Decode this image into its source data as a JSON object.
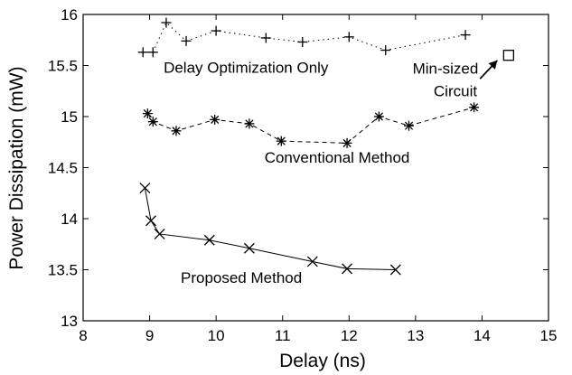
{
  "chart_data": {
    "type": "line",
    "title": "",
    "xlabel": "Delay (ns)",
    "ylabel": "Power Dissipation (mW)",
    "xlim": [
      8,
      15
    ],
    "ylim": [
      13,
      16
    ],
    "xticks": [
      "8",
      "9",
      "10",
      "11",
      "12",
      "13",
      "14",
      "15"
    ],
    "yticks": [
      "13",
      "13.5",
      "14",
      "14.5",
      "15",
      "15.5",
      "16"
    ],
    "grid": false,
    "series": [
      {
        "name": "Delay Optimization Only",
        "marker": "plus",
        "dash": "dotted",
        "x": [
          8.9,
          9.05,
          9.25,
          9.55,
          10.0,
          10.75,
          11.3,
          12.0,
          12.55,
          13.75
        ],
        "y": [
          15.63,
          15.63,
          15.92,
          15.74,
          15.84,
          15.77,
          15.73,
          15.78,
          15.65,
          15.8
        ]
      },
      {
        "name": "Conventional Method",
        "marker": "asterisk",
        "dash": "dashed",
        "x": [
          8.97,
          9.05,
          9.4,
          9.98,
          10.5,
          10.98,
          11.97,
          12.45,
          12.9,
          13.88
        ],
        "y": [
          15.03,
          14.95,
          14.86,
          14.97,
          14.93,
          14.76,
          14.74,
          15.0,
          14.91,
          15.09
        ]
      },
      {
        "name": "Proposed Method",
        "marker": "x",
        "dash": "solid",
        "x": [
          8.93,
          9.02,
          9.15,
          9.9,
          10.5,
          11.45,
          11.97,
          12.7
        ],
        "y": [
          14.3,
          13.98,
          13.85,
          13.79,
          13.71,
          13.58,
          13.51,
          13.5
        ]
      }
    ],
    "points": [
      {
        "name": "Min-sized Circuit",
        "marker": "square",
        "x": 14.4,
        "y": 15.6
      }
    ],
    "annotations": [
      {
        "text": "Delay Optimization Only",
        "x": 10.45,
        "y": 15.43,
        "anchor": "middle"
      },
      {
        "text": "Min-sized",
        "x": 13.45,
        "y": 15.42,
        "anchor": "middle"
      },
      {
        "text": "Circuit",
        "x": 13.6,
        "y": 15.2,
        "anchor": "middle"
      },
      {
        "text": "Conventional Method",
        "x": 11.82,
        "y": 14.55,
        "anchor": "middle"
      },
      {
        "text": "Proposed Method",
        "x": 10.38,
        "y": 13.37,
        "anchor": "middle"
      }
    ],
    "arrow": {
      "from": [
        13.97,
        15.37
      ],
      "to": [
        14.23,
        15.55
      ]
    }
  }
}
